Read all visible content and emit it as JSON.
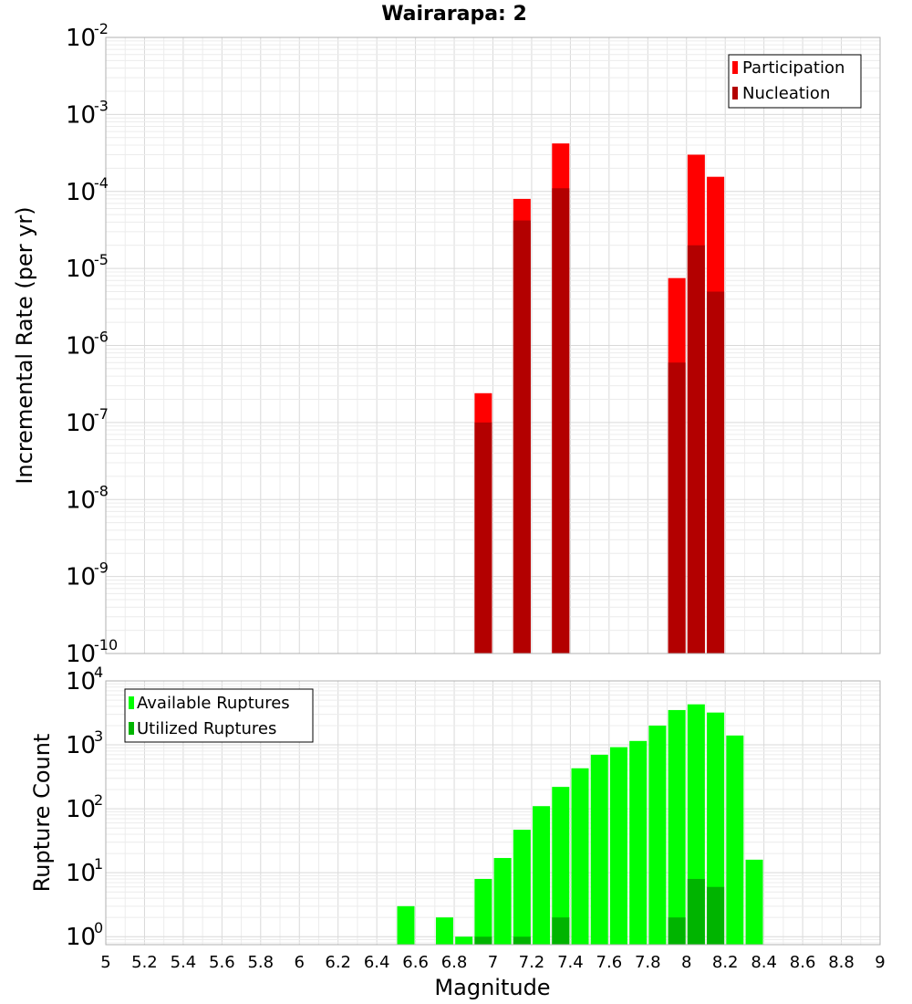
{
  "chart_data": [
    {
      "type": "bar",
      "title": "Wairarapa: 2",
      "xlabel": "",
      "ylabel": "Incremental Rate (per yr)",
      "yscale": "log",
      "xlim": [
        5,
        9
      ],
      "ylim": [
        1e-10,
        0.01
      ],
      "grid": true,
      "legend_position": "top-right",
      "x": [
        6.95,
        7.15,
        7.35,
        7.95,
        8.05,
        8.15
      ],
      "series": [
        {
          "name": "Participation",
          "color": "#ff0000",
          "values": [
            2.4e-07,
            8e-05,
            0.00042,
            7.5e-06,
            0.0003,
            0.000155
          ]
        },
        {
          "name": "Nucleation",
          "color": "#b30000",
          "values": [
            1e-07,
            4.2e-05,
            0.00011,
            6e-07,
            2e-05,
            5e-06
          ]
        }
      ]
    },
    {
      "type": "bar",
      "xlabel": "Magnitude",
      "ylabel": "Rupture Count",
      "yscale": "log",
      "xlim": [
        5,
        9
      ],
      "ylim": [
        0.75,
        10000
      ],
      "grid": true,
      "legend_position": "top-left",
      "xticks": [
        "5",
        "5.2",
        "5.4",
        "5.6",
        "5.8",
        "6",
        "6.2",
        "6.4",
        "6.6",
        "6.8",
        "7",
        "7.2",
        "7.4",
        "7.6",
        "7.8",
        "8",
        "8.2",
        "8.4",
        "8.6",
        "8.8",
        "9"
      ],
      "series": [
        {
          "name": "Available Ruptures",
          "color": "#00ff00",
          "x": [
            6.55,
            6.75,
            6.85,
            6.95,
            7.05,
            7.15,
            7.25,
            7.35,
            7.45,
            7.55,
            7.65,
            7.75,
            7.85,
            7.95,
            8.05,
            8.15,
            8.25,
            8.35
          ],
          "values": [
            3,
            2,
            1,
            8,
            17,
            47,
            110,
            220,
            430,
            700,
            920,
            1150,
            2000,
            3500,
            4300,
            3200,
            1400,
            16
          ]
        },
        {
          "name": "Utilized Ruptures",
          "color": "#00b400",
          "x": [
            6.95,
            7.15,
            7.35,
            7.95,
            8.05,
            8.15
          ],
          "values": [
            1,
            1,
            2,
            2,
            8,
            6
          ]
        }
      ]
    }
  ]
}
